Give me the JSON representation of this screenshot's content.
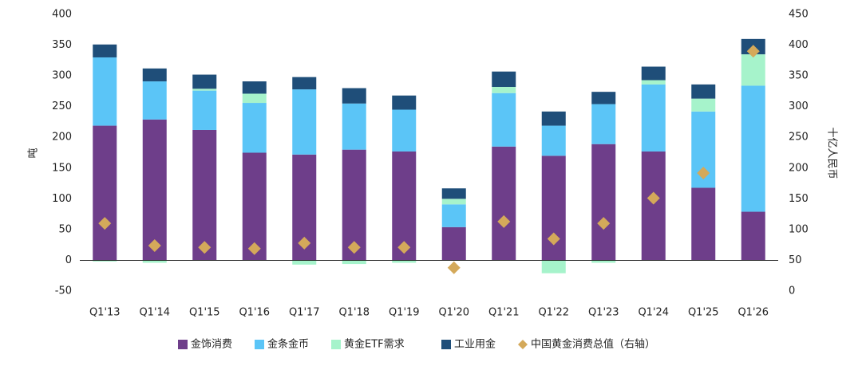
{
  "chart_data": {
    "type": "bar",
    "stacked": true,
    "categories": [
      "Q1'13",
      "Q1'14",
      "Q1'15",
      "Q1'16",
      "Q1'17",
      "Q1'18",
      "Q1'19",
      "Q1'20",
      "Q1'21",
      "Q1'22",
      "Q1'23",
      "Q1'24",
      "Q1'25",
      "Q1'26"
    ],
    "ylabel": "吨",
    "y2label": "十亿人民币",
    "ylim": [
      -50,
      400
    ],
    "yticks": [
      -50,
      0,
      50,
      100,
      150,
      200,
      250,
      300,
      350,
      400
    ],
    "y2lim": [
      0,
      450
    ],
    "y2ticks": [
      0,
      50,
      100,
      150,
      200,
      250,
      300,
      350,
      400,
      450
    ],
    "legend": "bottom",
    "series": [
      {
        "name": "金饰消费",
        "color": "#6e3e8a",
        "values": [
          219,
          229,
          212,
          175,
          172,
          180,
          177,
          54,
          185,
          170,
          189,
          177,
          118,
          79
        ]
      },
      {
        "name": "金条金币",
        "color": "#5bc5f7",
        "values": [
          111,
          62,
          64,
          81,
          106,
          75,
          68,
          37,
          87,
          49,
          65,
          109,
          124,
          205
        ]
      },
      {
        "name": "黄金ETF需求",
        "color": "#a6f3cb",
        "values": [
          -2,
          -4,
          3,
          15,
          -7,
          -6,
          -4,
          9,
          10,
          -21,
          -4,
          7,
          21,
          51
        ]
      },
      {
        "name": "工业用金",
        "color": "#1f4e79",
        "values": [
          21,
          21,
          23,
          20,
          20,
          25,
          23,
          17,
          25,
          23,
          20,
          22,
          23,
          25
        ]
      },
      {
        "name": "中国黄金消费总值（右轴）",
        "color": "#d4a95a",
        "type": "scatter",
        "axis": "y2",
        "values": [
          110,
          74,
          71,
          69,
          78,
          71,
          71,
          38,
          113,
          85,
          110,
          151,
          192,
          390
        ]
      }
    ]
  }
}
